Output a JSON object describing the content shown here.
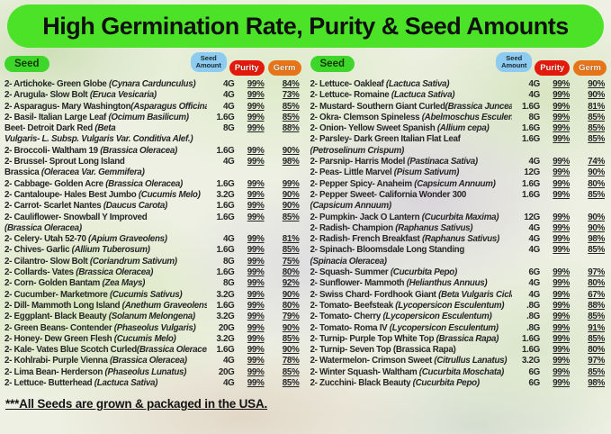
{
  "title": "High Germination Rate, Purity & Seed Amounts",
  "columns": {
    "seed": "Seed",
    "amount": "Seed Amount",
    "purity": "Purity",
    "germ": "Germ"
  },
  "colors": {
    "banner_green": "#4be228",
    "seed_pill": "#3fd62b",
    "amount_pill": "#8dcbf0",
    "purity_pill": "#e5190b",
    "germ_pill": "#e87418"
  },
  "footer": "***All Seeds are grown & packaged in the USA.",
  "left": [
    {
      "name": "2- Artichoke- Green Globe ",
      "latin": "(Cynara Cardunculus)",
      "amount": "4G",
      "purity": "99%",
      "germ": "84%"
    },
    {
      "name": "2- Arugula- Slow Bolt ",
      "latin": "(Eruca Vesicaria)",
      "amount": "4G",
      "purity": "99%",
      "germ": "73%"
    },
    {
      "name": "2- Asparagus- Mary Washington",
      "latin": "(Asparagus Officinalis)",
      "amount": "4G",
      "purity": "99%",
      "germ": "85%"
    },
    {
      "name": "2- Basil- Italian Large Leaf ",
      "latin": "(Ocimum Basilicum)",
      "amount": "1.6G",
      "purity": "99%",
      "germ": "85%"
    },
    {
      "name": "Beet- Detroit Dark Red ",
      "latin": "(Beta",
      "cont": "",
      "cont_latin": "Vulgaris- L. Subsp. Vulgaris Var. Conditiva Alef.)",
      "amount": "8G",
      "purity": "99%",
      "germ": "88%"
    },
    {
      "name": "2- Broccoli- Waltham 19 ",
      "latin": "(Brassica Oleracea)",
      "amount": "1.6G",
      "purity": "99%",
      "germ": "90%"
    },
    {
      "name": "2- Brussel- Sprout Long Island",
      "latin": "",
      "cont": "Brassica ",
      "cont_latin": "(Oleracea Var. Gemmifera)",
      "amount": "4G",
      "purity": "99%",
      "germ": "98%"
    },
    {
      "name": "2- Cabbage- Golden Acre ",
      "latin": "(Brassica Oleracea)",
      "amount": "1.6G",
      "purity": "99%",
      "germ": "99%"
    },
    {
      "name": "2- Cantaloupe- Hales Best Jumbo ",
      "latin": "(Cucumis Melo)",
      "amount": "3.2G",
      "purity": "99%",
      "germ": "90%"
    },
    {
      "name": "2- Carrot- Scarlet Nantes ",
      "latin": "(Daucus Carota)",
      "amount": "1.6G",
      "purity": "99%",
      "germ": "90%"
    },
    {
      "name": "2- Cauliflower- Snowball Y Improved",
      "latin": "",
      "cont": "",
      "cont_latin": "(Brassica Oleracea)",
      "amount": "1.6G",
      "purity": "99%",
      "germ": "85%"
    },
    {
      "name": "2- Celery- Utah 52-70 ",
      "latin": "(Apium Graveolens)",
      "amount": "4G",
      "purity": "99%",
      "germ": "81%"
    },
    {
      "name": "2- Chives- Garlic ",
      "latin": "(Allium Tuberosum)",
      "amount": "1.6G",
      "purity": "99%",
      "germ": "85%"
    },
    {
      "name": "2- Cilantro- Slow Bolt ",
      "latin": "(Coriandrum Sativum)",
      "amount": "8G",
      "purity": "99%",
      "germ": "75%"
    },
    {
      "name": "2- Collards- Vates ",
      "latin": "(Brassica Oleracea)",
      "amount": "1.6G",
      "purity": "99%",
      "germ": "80%"
    },
    {
      "name": "2- Corn- Golden Bantam ",
      "latin": "(Zea Mays)",
      "amount": "8G",
      "purity": "99%",
      "germ": "92%"
    },
    {
      "name": "2- Cucumber- Marketmore ",
      "latin": "(Cucumis Sativus)",
      "amount": "3.2G",
      "purity": "99%",
      "germ": "90%"
    },
    {
      "name": "2- Dill- Mammoth Long Island ",
      "latin": "(Anethum Graveolens)",
      "amount": "1.6G",
      "purity": "99%",
      "germ": "80%"
    },
    {
      "name": "2- Eggplant- Black Beauty ",
      "latin": "(Solanum Melongena)",
      "amount": "3.2G",
      "purity": "99%",
      "germ": "79%"
    },
    {
      "name": "2- Green Beans- Contender ",
      "latin": "(Phaseolus Vulgaris)",
      "amount": "20G",
      "purity": "99%",
      "germ": "90%"
    },
    {
      "name": "2- Honey- Dew Green Flesh ",
      "latin": "(Cucumis Melo)",
      "amount": "3.2G",
      "purity": "99%",
      "germ": "85%"
    },
    {
      "name": "2- Kale- Vates Blue Scotch Curled",
      "latin": "(Brassica Oleracea)",
      "amount": "1.6G",
      "purity": "99%",
      "germ": "90%"
    },
    {
      "name": "2- Kohlrabi- Purple Vienna ",
      "latin": "(Brassica Oleracea)",
      "amount": "4G",
      "purity": "99%",
      "germ": "78%"
    },
    {
      "name": "2- Lima Bean- Herderson ",
      "latin": "(Phaseolus Lunatus)",
      "amount": "20G",
      "purity": "99%",
      "germ": "85%"
    },
    {
      "name": "2- Lettuce- Butterhead ",
      "latin": "(Lactuca Sativa)",
      "amount": "4G",
      "purity": "99%",
      "germ": "85%"
    }
  ],
  "right": [
    {
      "name": "2- Lettuce- Oakleaf ",
      "latin": "(Lactuca Sativa)",
      "amount": "4G",
      "purity": "99%",
      "germ": "90%"
    },
    {
      "name": "2- Lettuce- Romaine ",
      "latin": "(Lactuca Sativa)",
      "amount": "4G",
      "purity": "99%",
      "germ": "90%"
    },
    {
      "name": "2- Mustard- Southern Giant Curled",
      "latin": "(Brassica Juncea)",
      "amount": "1.6G",
      "purity": "99%",
      "germ": "81%"
    },
    {
      "name": "2- Okra- Clemson Spineless ",
      "latin": "(Abelmoschus Esculentus)",
      "amount": "8G",
      "purity": "99%",
      "germ": "85%"
    },
    {
      "name": "2- Onion- Yellow Sweet Spanish ",
      "latin": "(Allium cepa)",
      "amount": "1.6G",
      "purity": "99%",
      "germ": "85%"
    },
    {
      "name": "2- Parsley- Dark Green Italian Flat Leaf",
      "latin": "",
      "cont": "",
      "cont_latin": "(Petroselinum Crispum)",
      "amount": "1.6G",
      "purity": "99%",
      "germ": "85%"
    },
    {
      "name": "2- Parsnip- Harris Model ",
      "latin": "(Pastinaca Sativa)",
      "amount": "4G",
      "purity": "99%",
      "germ": "74%"
    },
    {
      "name": "2- Peas- Little Marvel ",
      "latin": "(Pisum Sativum)",
      "amount": "12G",
      "purity": "99%",
      "germ": "90%"
    },
    {
      "name": "2- Pepper Spicy- Anaheim ",
      "latin": "(Capsicum Annuum)",
      "amount": "1.6G",
      "purity": "99%",
      "germ": "80%"
    },
    {
      "name": "2- Pepper Sweet- California Wonder 300",
      "latin": "",
      "cont": "",
      "cont_latin": "(Capsicum Annuum)",
      "amount": "1.6G",
      "purity": "99%",
      "germ": "85%"
    },
    {
      "name": "2- Pumpkin- Jack O Lantern ",
      "latin": "(Cucurbita Maxima)",
      "amount": "12G",
      "purity": "99%",
      "germ": "90%"
    },
    {
      "name": "2- Radish- Champion ",
      "latin": "(Raphanus Sativus)",
      "amount": "4G",
      "purity": "99%",
      "germ": "90%"
    },
    {
      "name": "2- Radish- French Breakfast ",
      "latin": "(Raphanus Sativus)",
      "amount": "4G",
      "purity": "99%",
      "germ": "98%"
    },
    {
      "name": "2- Spinach- Bloomsdale Long Standing",
      "latin": "",
      "cont": "",
      "cont_latin": "(Spinacia Oleracea)",
      "amount": "4G",
      "purity": "99%",
      "germ": "85%"
    },
    {
      "name": "2- Squash- Summer ",
      "latin": "(Cucurbita Pepo)",
      "amount": "6G",
      "purity": "99%",
      "germ": "97%"
    },
    {
      "name": "2- Sunflower- Mammoth ",
      "latin": "(Helianthus Annuus)",
      "amount": "4G",
      "purity": "99%",
      "germ": "80%"
    },
    {
      "name": "2- Swiss Chard- Fordhook Giant ",
      "latin": "(Beta Vulgaris Cicla)",
      "amount": "4G",
      "purity": "99%",
      "germ": "67%"
    },
    {
      "name": "2- Tomato- Beefsteak ",
      "latin": "(Lycopersicon Esculentum)",
      "amount": ".8G",
      "purity": "99%",
      "germ": "88%"
    },
    {
      "name": "2- Tomato- Cherry ",
      "latin": "(Lycopersicon Esculentum)",
      "amount": ".8G",
      "purity": "99%",
      "germ": "85%"
    },
    {
      "name": "2- Tomato- Roma IV ",
      "latin": "(Lycopersicon Esculentum)",
      "amount": ".8G",
      "purity": "99%",
      "germ": "91%"
    },
    {
      "name": "2- Turnip- Purple Top White Top ",
      "latin": "(Brassica Rapa)",
      "amount": "1.6G",
      "purity": "99%",
      "germ": "85%"
    },
    {
      "name": "2- Turnip- Seven Top (Brassica Rapa)",
      "latin": "",
      "amount": "1.6G",
      "purity": "99%",
      "germ": "80%"
    },
    {
      "name": "2- Watermelon- Crimson Sweet ",
      "latin": "(Citrullus Lanatus)",
      "amount": "3.2G",
      "purity": "99%",
      "germ": "97%"
    },
    {
      "name": "2- Winter Squash- Waltham ",
      "latin": "(Cucurbita Moschata)",
      "amount": "6G",
      "purity": "99%",
      "germ": "85%"
    },
    {
      "name": "2- Zucchini- Black Beauty ",
      "latin": "(Cucurbita Pepo)",
      "amount": "6G",
      "purity": "99%",
      "germ": "98%"
    }
  ]
}
